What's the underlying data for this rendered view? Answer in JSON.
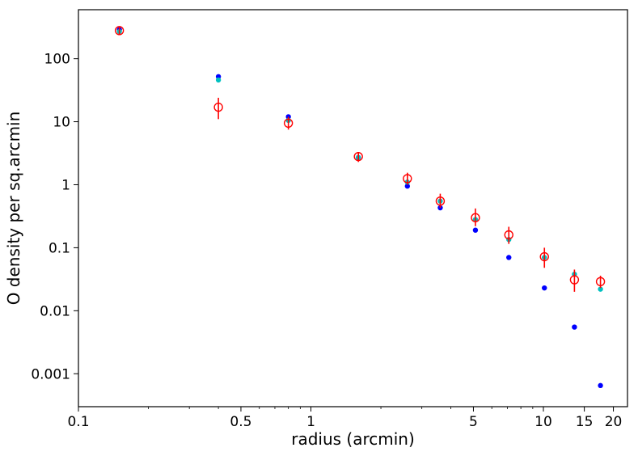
{
  "chart_data": {
    "type": "scatter",
    "title": "",
    "xlabel": "radius (arcmin)",
    "ylabel": "O density per sq.arcmin",
    "xscale": "log",
    "yscale": "log",
    "xlim": [
      0.1,
      23
    ],
    "ylim": [
      0.0003,
      600
    ],
    "grid": false,
    "x_ticks": [
      {
        "value": 0.1,
        "label": "0.1"
      },
      {
        "value": 0.5,
        "label": "0.5"
      },
      {
        "value": 1,
        "label": "1"
      },
      {
        "value": 5,
        "label": "5"
      },
      {
        "value": 10,
        "label": "10"
      },
      {
        "value": 15,
        "label": "15"
      },
      {
        "value": 20,
        "label": "20"
      }
    ],
    "y_ticks": [
      {
        "value": 0.001,
        "label": "0.001"
      },
      {
        "value": 0.01,
        "label": "0.01"
      },
      {
        "value": 0.1,
        "label": "0.1"
      },
      {
        "value": 1,
        "label": "1"
      },
      {
        "value": 10,
        "label": "10"
      },
      {
        "value": 100,
        "label": "100"
      }
    ],
    "series": [
      {
        "marker": "filled-circle",
        "color": "#0000ff",
        "x": [
          0.15,
          0.4,
          0.8,
          1.6,
          2.6,
          3.6,
          5.1,
          7.1,
          10.1,
          13.6,
          17.6
        ],
        "y": [
          290,
          52,
          12,
          2.7,
          0.95,
          0.43,
          0.19,
          0.07,
          0.023,
          0.0055,
          0.00065
        ]
      },
      {
        "marker": "filled-circle",
        "color": "#00c0c0",
        "x": [
          0.15,
          0.4,
          0.8,
          1.6,
          2.6,
          3.6,
          5.1,
          7.1,
          10.1,
          13.6,
          17.6
        ],
        "y": [
          270,
          46,
          10.5,
          2.7,
          1.1,
          0.55,
          0.28,
          0.135,
          0.07,
          0.038,
          0.022
        ]
      },
      {
        "marker": "open-circle",
        "color": "#ff0000",
        "error_bars": true,
        "x": [
          0.15,
          0.4,
          0.8,
          1.6,
          2.6,
          3.6,
          5.1,
          7.1,
          10.1,
          13.6,
          17.6
        ],
        "y": [
          280,
          17,
          9.5,
          2.8,
          1.25,
          0.55,
          0.3,
          0.16,
          0.072,
          0.031,
          0.029
        ],
        "y_low": [
          240,
          11,
          7.5,
          2.3,
          1.0,
          0.43,
          0.22,
          0.115,
          0.048,
          0.02,
          0.023
        ],
        "y_high": [
          320,
          24,
          12,
          3.3,
          1.55,
          0.72,
          0.42,
          0.215,
          0.1,
          0.045,
          0.036
        ]
      }
    ]
  }
}
